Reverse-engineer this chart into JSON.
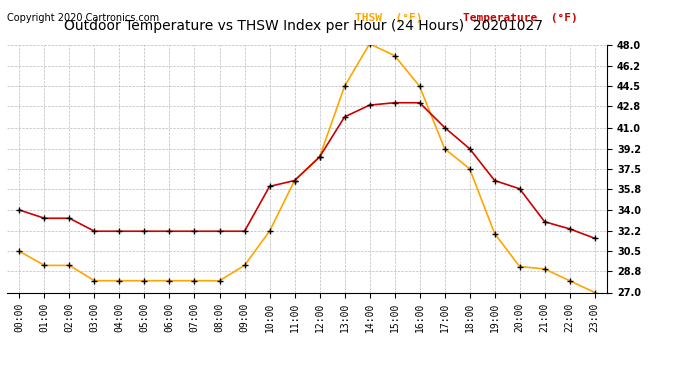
{
  "title": "Outdoor Temperature vs THSW Index per Hour (24 Hours)  20201027",
  "copyright": "Copyright 2020 Cartronics.com",
  "legend_thsw": "THSW  (°F)",
  "legend_temp": "Temperature  (°F)",
  "hours": [
    0,
    1,
    2,
    3,
    4,
    5,
    6,
    7,
    8,
    9,
    10,
    11,
    12,
    13,
    14,
    15,
    16,
    17,
    18,
    19,
    20,
    21,
    22,
    23
  ],
  "temperature": [
    34.0,
    33.3,
    33.3,
    32.2,
    32.2,
    32.2,
    32.2,
    32.2,
    32.2,
    32.2,
    36.0,
    36.5,
    38.5,
    41.9,
    42.9,
    43.1,
    43.1,
    41.0,
    39.2,
    36.5,
    35.8,
    33.0,
    32.4,
    31.6
  ],
  "thsw": [
    30.5,
    29.3,
    29.3,
    28.0,
    28.0,
    28.0,
    28.0,
    28.0,
    28.0,
    29.3,
    32.2,
    36.5,
    38.5,
    44.5,
    48.1,
    47.1,
    44.5,
    39.2,
    37.5,
    32.0,
    29.2,
    29.0,
    28.0,
    27.0
  ],
  "thsw_color": "#FFA500",
  "temp_color": "#CC0000",
  "marker_color": "black",
  "bg_color": "#FFFFFF",
  "grid_color": "#BBBBBB",
  "title_color": "#000000",
  "copyright_color": "#000000",
  "legend_thsw_color": "#FFA500",
  "legend_temp_color": "#CC0000",
  "ylim_min": 27.0,
  "ylim_max": 48.0,
  "yticks": [
    27.0,
    28.8,
    30.5,
    32.2,
    34.0,
    35.8,
    37.5,
    39.2,
    41.0,
    42.8,
    44.5,
    46.2,
    48.0
  ],
  "title_fontsize": 10,
  "copyright_fontsize": 7,
  "axis_fontsize": 7,
  "legend_fontsize": 8
}
